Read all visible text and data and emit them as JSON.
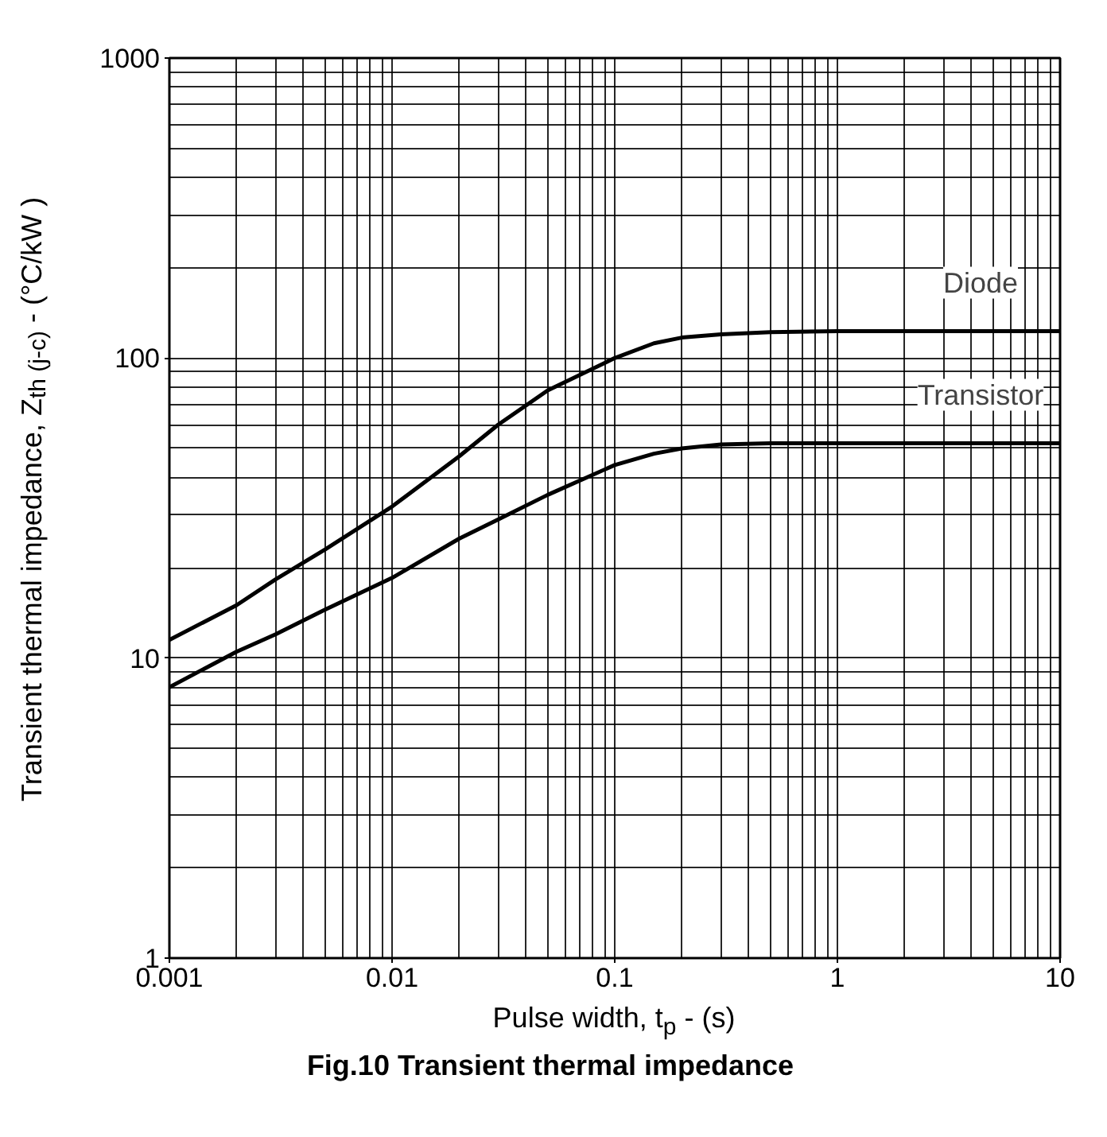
{
  "chart_data": {
    "type": "line",
    "xlabel": "Pulse width, t$_{p}$ - (s)",
    "ylabel": "Transient thermal impedance, Z$_{th (j-c)}$ - (°C/kW )",
    "annotations": [
      "Fig.10 Transient thermal impedance"
    ],
    "log": "xy",
    "xlim": [
      0.001,
      10
    ],
    "ylim": [
      1,
      1000
    ],
    "xticks": [
      0.001,
      0.01,
      0.1,
      1,
      10
    ],
    "yticks": [
      1,
      10,
      100,
      1000
    ],
    "grid": true,
    "line_style": "solid",
    "x": [
      0.001,
      0.002,
      0.003,
      0.005,
      0.01,
      0.02,
      0.03,
      0.05,
      0.1,
      0.15,
      0.2,
      0.3,
      0.5,
      1,
      2,
      5,
      10
    ],
    "series": [
      {
        "name": "Diode",
        "color": "#000000",
        "values": [
          11.5,
          15,
          18.3,
          23,
          32,
          47,
          60,
          78,
          100,
          112,
          117,
          120,
          122,
          123,
          123,
          123,
          123
        ]
      },
      {
        "name": "Transistor",
        "color": "#000000",
        "values": [
          8,
          10.5,
          12,
          14.5,
          18.5,
          25,
          29,
          35,
          44,
          48,
          50,
          51.5,
          52,
          52,
          52,
          52,
          52
        ]
      }
    ]
  }
}
